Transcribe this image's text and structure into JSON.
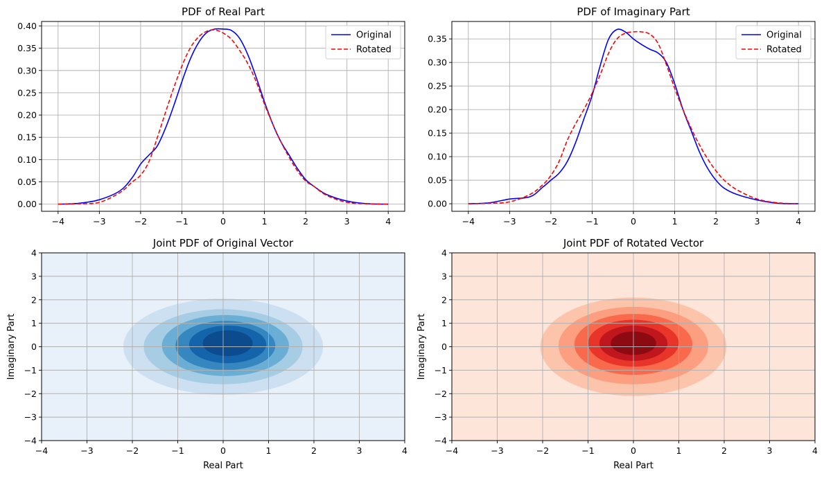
{
  "chart_data": [
    {
      "type": "line",
      "title": "PDF of Real Part",
      "xlabel": "",
      "ylabel": "",
      "xlim": [
        -4,
        4
      ],
      "ylim": [
        0,
        0.4
      ],
      "xticks": [
        "−4",
        "−3",
        "−2",
        "−1",
        "0",
        "1",
        "2",
        "3",
        "4"
      ],
      "yticks": [
        "0.00",
        "0.05",
        "0.10",
        "0.15",
        "0.20",
        "0.25",
        "0.30",
        "0.35",
        "0.40"
      ],
      "grid": true,
      "legend": "upper right",
      "x": [
        -4,
        -3.5,
        -3,
        -2.5,
        -2.2,
        -2,
        -1.8,
        -1.6,
        -1.4,
        -1.2,
        -1,
        -0.8,
        -0.6,
        -0.4,
        -0.2,
        0,
        0.2,
        0.4,
        0.6,
        0.8,
        1,
        1.2,
        1.4,
        1.6,
        1.8,
        2,
        2.2,
        2.5,
        3,
        3.5,
        4
      ],
      "series": [
        {
          "name": "Original",
          "color": "#0000ff",
          "dash": "solid",
          "values": [
            0.0,
            0.002,
            0.01,
            0.03,
            0.06,
            0.09,
            0.11,
            0.13,
            0.17,
            0.22,
            0.275,
            0.325,
            0.362,
            0.385,
            0.393,
            0.393,
            0.39,
            0.372,
            0.335,
            0.285,
            0.23,
            0.18,
            0.14,
            0.11,
            0.08,
            0.055,
            0.04,
            0.022,
            0.007,
            0.001,
            0.0
          ]
        },
        {
          "name": "Rotated",
          "color": "#ff0000",
          "dash": "dashed",
          "values": [
            0.0,
            0.001,
            0.004,
            0.026,
            0.05,
            0.065,
            0.095,
            0.148,
            0.205,
            0.26,
            0.31,
            0.35,
            0.375,
            0.388,
            0.391,
            0.384,
            0.37,
            0.345,
            0.315,
            0.275,
            0.225,
            0.18,
            0.14,
            0.105,
            0.075,
            0.052,
            0.04,
            0.02,
            0.004,
            0.001,
            0.0
          ]
        }
      ]
    },
    {
      "type": "line",
      "title": "PDF of Imaginary Part",
      "xlabel": "",
      "ylabel": "",
      "xlim": [
        -4,
        4
      ],
      "ylim": [
        0,
        0.35
      ],
      "xticks": [
        "−4",
        "−3",
        "−2",
        "−1",
        "0",
        "1",
        "2",
        "3",
        "4"
      ],
      "yticks": [
        "0.00",
        "0.05",
        "0.10",
        "0.15",
        "0.20",
        "0.25",
        "0.30",
        "0.35"
      ],
      "grid": true,
      "legend": "upper right",
      "x": [
        -4,
        -3.5,
        -3,
        -2.5,
        -2.2,
        -2,
        -1.8,
        -1.6,
        -1.4,
        -1.2,
        -1,
        -0.8,
        -0.6,
        -0.4,
        -0.2,
        0,
        0.2,
        0.4,
        0.6,
        0.8,
        1,
        1.2,
        1.4,
        1.6,
        1.8,
        2,
        2.2,
        2.5,
        3,
        3.5,
        4
      ],
      "series": [
        {
          "name": "Original",
          "color": "#0000ff",
          "dash": "solid",
          "values": [
            0.0,
            0.002,
            0.01,
            0.015,
            0.035,
            0.05,
            0.065,
            0.09,
            0.13,
            0.18,
            0.23,
            0.295,
            0.35,
            0.37,
            0.365,
            0.35,
            0.338,
            0.328,
            0.32,
            0.3,
            0.255,
            0.2,
            0.155,
            0.11,
            0.075,
            0.05,
            0.033,
            0.02,
            0.008,
            0.001,
            0.0
          ]
        },
        {
          "name": "Rotated",
          "color": "#ff0000",
          "dash": "dashed",
          "values": [
            0.0,
            0.001,
            0.004,
            0.02,
            0.04,
            0.06,
            0.09,
            0.135,
            0.17,
            0.2,
            0.235,
            0.275,
            0.32,
            0.35,
            0.362,
            0.365,
            0.365,
            0.36,
            0.34,
            0.295,
            0.245,
            0.2,
            0.16,
            0.125,
            0.095,
            0.07,
            0.05,
            0.03,
            0.01,
            0.002,
            0.0
          ]
        }
      ]
    },
    {
      "type": "heatmap",
      "subtype": "filled-contour",
      "title": "Joint PDF of Original Vector",
      "xlabel": "Real Part",
      "ylabel": "Imaginary Part",
      "xlim": [
        -4,
        4
      ],
      "ylim": [
        -4,
        4
      ],
      "xticks": [
        "−4",
        "−3",
        "−2",
        "−1",
        "0",
        "1",
        "2",
        "3",
        "4"
      ],
      "yticks": [
        "−4",
        "−3",
        "−2",
        "−1",
        "0",
        "1",
        "2",
        "3",
        "4"
      ],
      "grid": true,
      "colormap": "Blues",
      "background": "#e8f0f9",
      "levels": [
        {
          "color": "#cde0f1",
          "center": [
            0.0,
            0.0
          ],
          "radii": [
            2.2,
            2.05
          ]
        },
        {
          "color": "#a6cde4",
          "center": [
            0.0,
            0.0
          ],
          "radii": [
            1.75,
            1.6
          ]
        },
        {
          "color": "#6aaed6",
          "center": [
            0.05,
            0.05
          ],
          "radii": [
            1.4,
            1.3
          ]
        },
        {
          "color": "#3686c0",
          "center": [
            0.05,
            0.05
          ],
          "radii": [
            1.1,
            1.05
          ]
        },
        {
          "color": "#1464ac",
          "center": [
            0.1,
            0.1
          ],
          "radii": [
            0.85,
            0.8
          ]
        },
        {
          "color": "#0c4b8e",
          "center": [
            0.1,
            0.15
          ],
          "radii": [
            0.55,
            0.55
          ]
        }
      ]
    },
    {
      "type": "heatmap",
      "subtype": "filled-contour",
      "title": "Joint PDF of Rotated Vector",
      "xlabel": "Real Part",
      "ylabel": "Imaginary Part",
      "xlim": [
        -4,
        4
      ],
      "ylim": [
        -4,
        4
      ],
      "xticks": [
        "−4",
        "−3",
        "−2",
        "−1",
        "0",
        "1",
        "2",
        "3",
        "4"
      ],
      "yticks": [
        "−4",
        "−3",
        "−2",
        "−1",
        "0",
        "1",
        "2",
        "3",
        "4"
      ],
      "grid": true,
      "colormap": "Reds",
      "background": "#fde5da",
      "levels": [
        {
          "color": "#fcc5ab",
          "center": [
            0.0,
            0.0
          ],
          "radii": [
            2.05,
            2.1
          ]
        },
        {
          "color": "#fc9f81",
          "center": [
            0.0,
            0.05
          ],
          "radii": [
            1.65,
            1.65
          ]
        },
        {
          "color": "#f9694c",
          "center": [
            0.0,
            0.1
          ],
          "radii": [
            1.3,
            1.3
          ]
        },
        {
          "color": "#e83429",
          "center": [
            0.0,
            0.15
          ],
          "radii": [
            1.0,
            1.0
          ]
        },
        {
          "color": "#c0161d",
          "center": [
            0.0,
            0.15
          ],
          "radii": [
            0.75,
            0.75
          ]
        },
        {
          "color": "#8e0a13",
          "center": [
            0.0,
            0.15
          ],
          "radii": [
            0.5,
            0.5
          ]
        }
      ]
    }
  ]
}
